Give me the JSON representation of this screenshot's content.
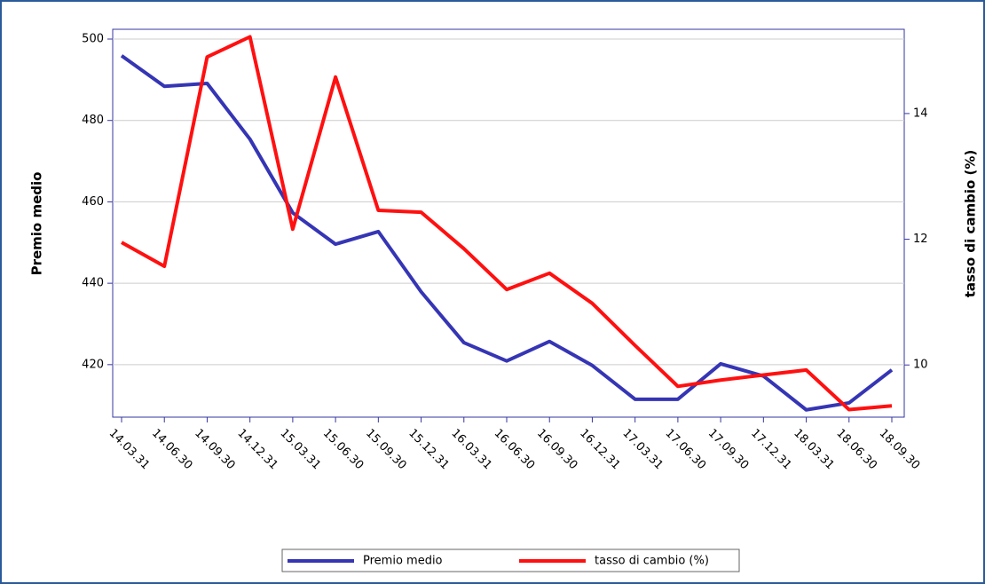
{
  "chart_data": {
    "type": "line",
    "categories": [
      "14.03.31",
      "14.06.30",
      "14.09.30",
      "14.12.31",
      "15.03.31",
      "15.06.30",
      "15.09.30",
      "15.12.31",
      "16.03.31",
      "16.06.30",
      "16.09.30",
      "16.12.31",
      "17.03.31",
      "17.06.30",
      "17.09.30",
      "17.12.31",
      "18.03.31",
      "18.06.30",
      "18.09.30"
    ],
    "y_label": "Premio medio",
    "y2_label": "tasso di cambio (%)",
    "ylim": [
      407.1,
      502.4
    ],
    "yticks": [
      420,
      440,
      460,
      480,
      500
    ],
    "y2lim": [
      9.17,
      15.34
    ],
    "y2ticks": [
      10,
      12,
      14
    ],
    "grid": true,
    "legend": "bottom",
    "series": [
      {
        "name": "Premio medio",
        "color": "#3535b5",
        "values": [
          495.9,
          488.4,
          489.1,
          475.4,
          457.3,
          449.6,
          452.7,
          437.9,
          425.4,
          420.9,
          425.7,
          419.8,
          411.5,
          411.5,
          420.2,
          417.2,
          408.9,
          410.6,
          418.7
        ]
      },
      {
        "name": "tasso di cambio (%)",
        "color": "#ff1010",
        "axis": "y2",
        "values": [
          11.95,
          11.57,
          14.9,
          15.22,
          12.16,
          14.58,
          12.46,
          12.43,
          11.85,
          11.2,
          11.46,
          10.98,
          10.31,
          9.66,
          9.76,
          9.84,
          9.92,
          9.29,
          9.35
        ]
      }
    ]
  }
}
